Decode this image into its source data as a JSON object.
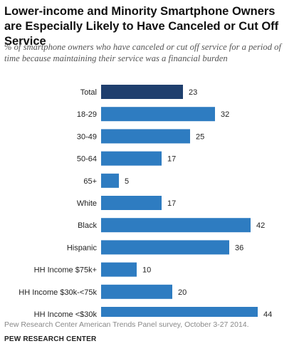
{
  "chart_data": {
    "type": "bar",
    "orientation": "horizontal",
    "title": "Lower-income and Minority Smartphone Owners are Especially Likely to Have Canceled or Cut Off Service",
    "subtitle": "% of smartphone owners who have canceled or cut off service for a period of time because maintaining their service was a financial burden",
    "categories": [
      "Total",
      "18-29",
      "30-49",
      "50-64",
      "65+",
      "White",
      "Black",
      "Hispanic",
      "HH Income $75k+",
      "HH Income $30k-<75k",
      "HH Income <$30k"
    ],
    "values": [
      23,
      32,
      25,
      17,
      5,
      17,
      42,
      36,
      10,
      20,
      44
    ],
    "highlight_index": 0,
    "colors": {
      "highlight": "#1f3f6e",
      "default": "#2e7cc1"
    },
    "data_labels": true,
    "grid": false,
    "legend": "none"
  },
  "footer": {
    "source": "Pew Research Center American Trends Panel survey, October 3-27 2014.",
    "organization": "PEW RESEARCH CENTER"
  }
}
